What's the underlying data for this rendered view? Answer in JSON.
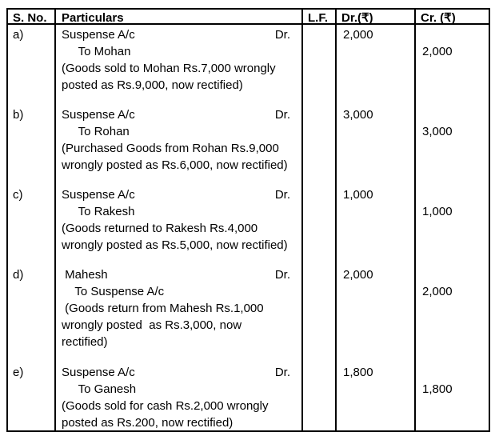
{
  "table": {
    "headers": {
      "sno": "S. No.",
      "particulars": "Particulars",
      "lf": "L.F.",
      "dr": "Dr.(₹)",
      "cr": "Cr. (₹)"
    },
    "entries": [
      {
        "sno": "a)",
        "account": "Suspense A/c",
        "dr_label": "Dr.",
        "to_line": "     To Mohan",
        "narration_lines": [
          "(Goods sold to Mohan Rs.7,000 wrongly",
          "posted as Rs.9,000, now rectified)"
        ],
        "dr_amount": "2,000",
        "cr_amount": "2,000"
      },
      {
        "sno": "b)",
        "account": "Suspense A/c",
        "dr_label": "Dr.",
        "to_line": "     To Rohan",
        "narration_lines": [
          "(Purchased Goods from Rohan Rs.9,000",
          "wrongly posted as Rs.6,000, now rectified)"
        ],
        "dr_amount": "3,000",
        "cr_amount": "3,000"
      },
      {
        "sno": "c)",
        "account": "Suspense A/c",
        "dr_label": "Dr.",
        "to_line": "     To Rakesh",
        "narration_lines": [
          "(Goods returned to Rakesh Rs.4,000",
          "wrongly posted as Rs.5,000, now rectified)"
        ],
        "dr_amount": "1,000",
        "cr_amount": "1,000"
      },
      {
        "sno": "d)",
        "account": " Mahesh",
        "dr_label": "Dr.",
        "to_line": "    To Suspense A/c",
        "narration_lines": [
          " (Goods return from Mahesh Rs.1,000",
          "wrongly posted  as Rs.3,000, now",
          "rectified)"
        ],
        "dr_amount": "2,000",
        "cr_amount": "2,000"
      },
      {
        "sno": "e)",
        "account": "Suspense A/c",
        "dr_label": "Dr.",
        "to_line": "     To Ganesh",
        "narration_lines": [
          "(Goods sold for cash Rs.2,000 wrongly",
          "posted as Rs.200, now rectified)"
        ],
        "dr_amount": "1,800",
        "cr_amount": "1,800"
      }
    ]
  }
}
